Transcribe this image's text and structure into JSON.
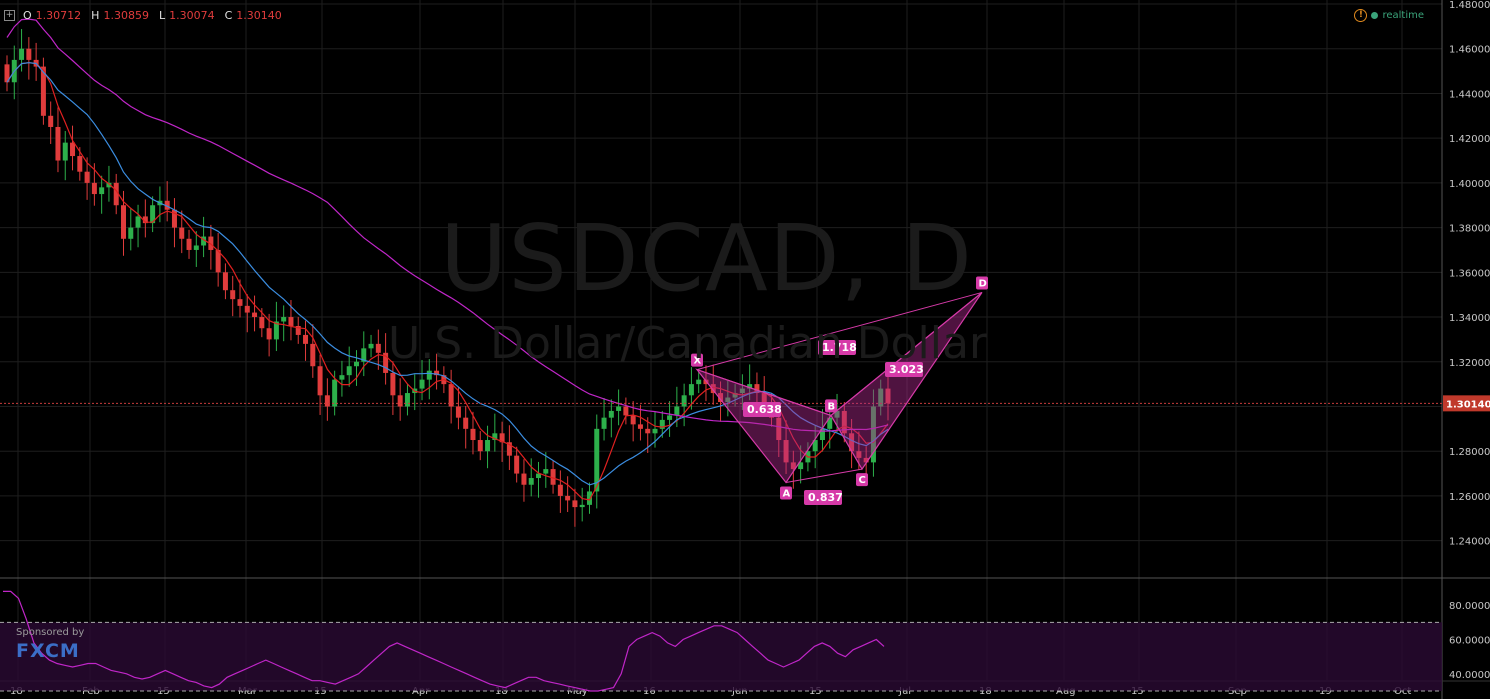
{
  "header": {
    "ohlc": {
      "o_label": "O",
      "o": "1.30712",
      "h_label": "H",
      "h": "1.30859",
      "l_label": "L",
      "l": "1.30074",
      "c_label": "C",
      "c": "1.30140"
    },
    "realtime_label": "realtime"
  },
  "watermark": {
    "symbol": "USDCAD, D",
    "description": "U.S. Dollar/Canadian Dollar"
  },
  "sponsor": {
    "label": "Sponsored by",
    "brand": "FXCM"
  },
  "colors": {
    "up": "#2db04b",
    "down": "#e03c3c",
    "sma_short": "#e02020",
    "sma_mid": "#3b8de0",
    "sma_long": "#c026c8",
    "pattern": "#d63aa8",
    "pattern_fill": "#b02a8e",
    "price_line": "#c83c3c",
    "grid": "#1e1e1e"
  },
  "chart_data": [
    {
      "type": "candlestick",
      "title": "USDCAD, D",
      "subtitle": "U.S. Dollar/Canadian Dollar",
      "ylim": [
        1.23,
        1.48
      ],
      "y_ticks": [
        "1.48000",
        "1.46000",
        "1.44000",
        "1.42000",
        "1.40000",
        "1.38000",
        "1.36000",
        "1.34000",
        "1.32000",
        "1.30000",
        "1.28000",
        "1.26000",
        "1.24000"
      ],
      "x_ticks": [
        "18",
        "Feb",
        "15",
        "Mar",
        "15",
        "Apr",
        "18",
        "May",
        "16",
        "Jun",
        "15",
        "Jul",
        "18",
        "Aug",
        "15",
        "Sep",
        "19",
        "Oct"
      ],
      "last_price": "1.30140",
      "candles_close": [
        1.445,
        1.455,
        1.46,
        1.455,
        1.452,
        1.43,
        1.425,
        1.41,
        1.418,
        1.412,
        1.405,
        1.4,
        1.395,
        1.398,
        1.4,
        1.39,
        1.375,
        1.38,
        1.385,
        1.382,
        1.39,
        1.392,
        1.388,
        1.38,
        1.375,
        1.37,
        1.372,
        1.376,
        1.37,
        1.36,
        1.352,
        1.348,
        1.345,
        1.342,
        1.34,
        1.335,
        1.33,
        1.338,
        1.34,
        1.336,
        1.332,
        1.328,
        1.318,
        1.305,
        1.3,
        1.312,
        1.314,
        1.318,
        1.32,
        1.326,
        1.328,
        1.324,
        1.315,
        1.305,
        1.3,
        1.306,
        1.308,
        1.312,
        1.316,
        1.314,
        1.31,
        1.3,
        1.295,
        1.29,
        1.285,
        1.28,
        1.285,
        1.288,
        1.284,
        1.278,
        1.27,
        1.265,
        1.268,
        1.27,
        1.272,
        1.265,
        1.26,
        1.258,
        1.255,
        1.256,
        1.262,
        1.29,
        1.295,
        1.298,
        1.3,
        1.296,
        1.292,
        1.29,
        1.288,
        1.29,
        1.294,
        1.296,
        1.3,
        1.305,
        1.31,
        1.312,
        1.31,
        1.306,
        1.302,
        1.304,
        1.306,
        1.308,
        1.31,
        1.306,
        1.302,
        1.295,
        1.285,
        1.275,
        1.272,
        1.275,
        1.28,
        1.285,
        1.29,
        1.295,
        1.298,
        1.288,
        1.28,
        1.277,
        1.275,
        1.3,
        1.308,
        1.3014
      ],
      "series": [
        {
          "name": "",
          "values": []
        }
      ],
      "harmonic_pattern": {
        "points": [
          {
            "label": "X",
            "price": 1.3165
          },
          {
            "label": "A",
            "price": 1.266
          },
          {
            "label": "B",
            "price": 1.296
          },
          {
            "label": "C",
            "price": 1.272
          },
          {
            "label": "D",
            "price": 1.351
          }
        ],
        "ratios": [
          "0.638",
          "0.837",
          "1.718",
          "3.023"
        ]
      }
    },
    {
      "type": "line",
      "title": "",
      "ylim": [
        30,
        90
      ],
      "y_ticks": [
        "80.0000",
        "60.0000",
        "40.0000"
      ],
      "bands": [
        70,
        30
      ],
      "values": [
        88,
        88,
        84,
        72,
        58,
        52,
        48,
        46,
        45,
        44,
        45,
        46,
        46,
        44,
        42,
        41,
        40,
        38,
        37,
        38,
        40,
        42,
        40,
        38,
        36,
        35,
        33,
        32,
        34,
        38,
        40,
        42,
        44,
        46,
        48,
        46,
        44,
        42,
        40,
        38,
        36,
        36,
        35,
        34,
        36,
        38,
        40,
        44,
        48,
        52,
        56,
        58,
        56,
        54,
        52,
        50,
        48,
        46,
        44,
        42,
        40,
        38,
        36,
        34,
        33,
        32,
        34,
        36,
        38,
        38,
        36,
        35,
        34,
        33,
        32,
        31,
        30,
        30,
        31,
        32,
        40,
        56,
        60,
        62,
        64,
        62,
        58,
        56,
        60,
        62,
        64,
        66,
        68,
        68,
        66,
        64,
        60,
        56,
        52,
        48,
        46,
        44,
        46,
        48,
        52,
        56,
        58,
        56,
        52,
        50,
        54,
        56,
        58,
        60,
        56
      ],
      "last_value": 56
    }
  ]
}
